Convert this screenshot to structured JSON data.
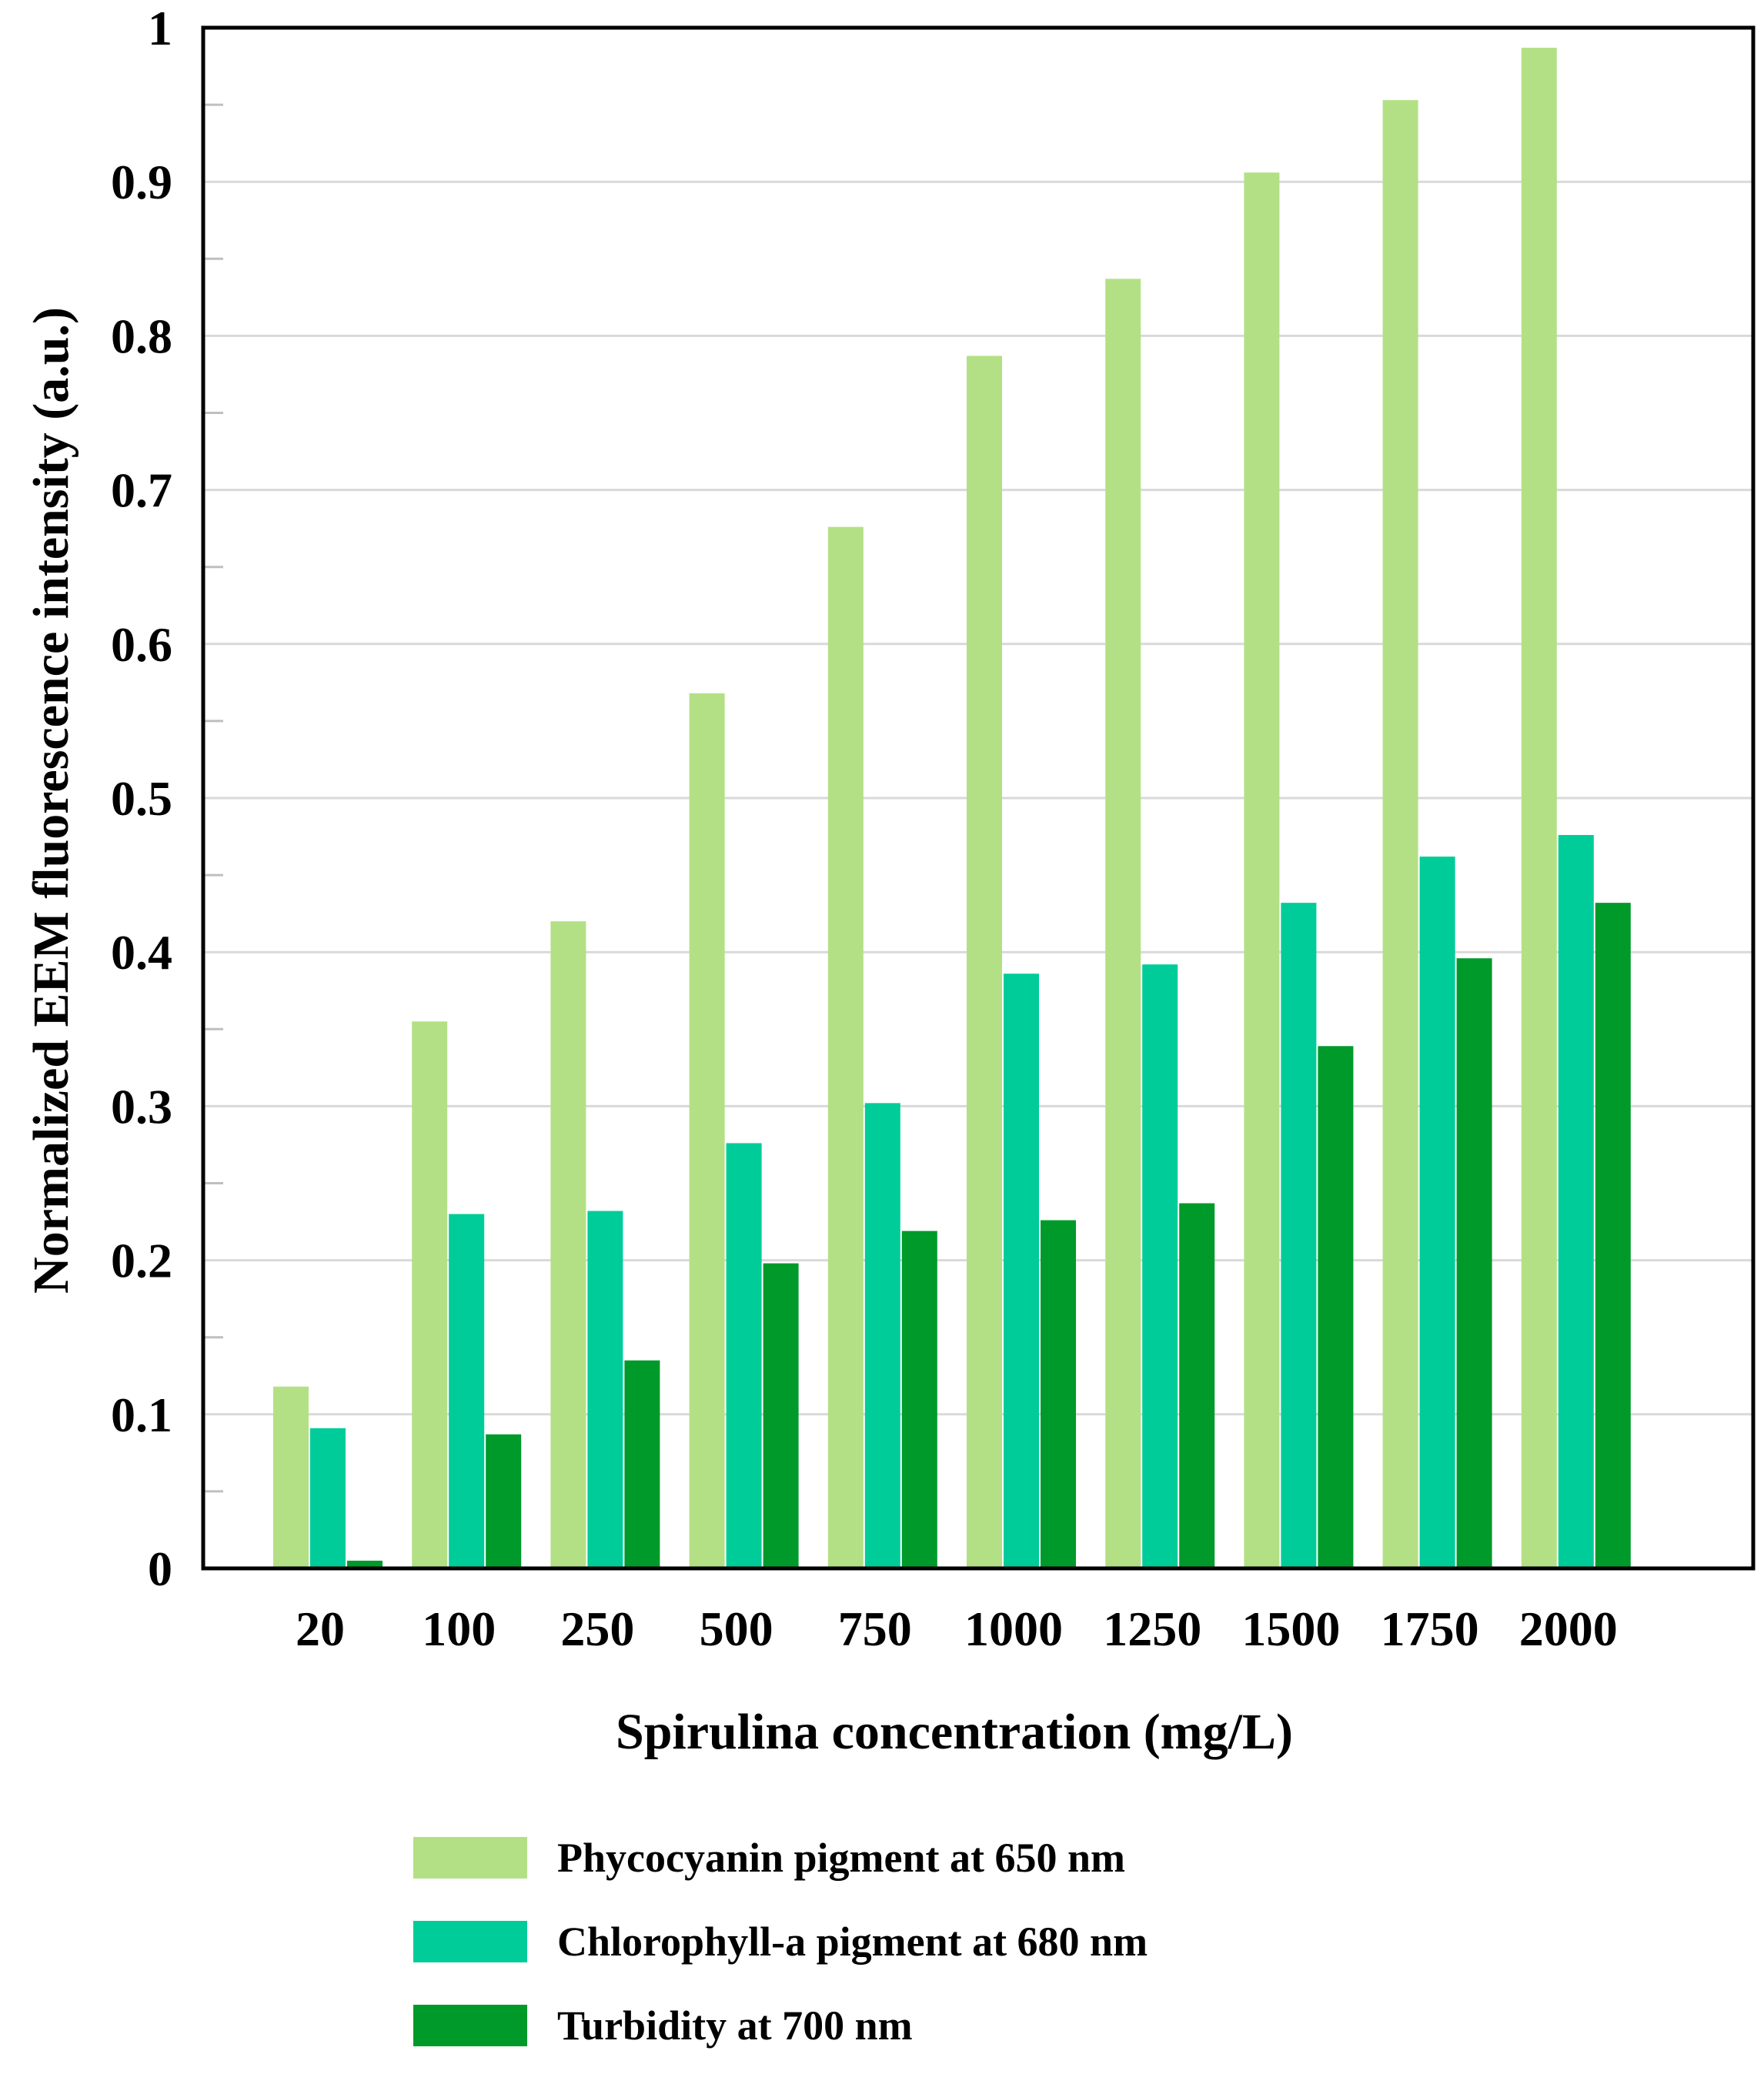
{
  "chart_data": {
    "type": "bar",
    "xlabel": "Spirulina concentration (mg/L)",
    "ylabel": "Normalized EEM fluorescence intensity (a.u.)",
    "ylim": [
      0,
      1
    ],
    "yticks": [
      "0",
      "0.1",
      "0.2",
      "0.3",
      "0.4",
      "0.5",
      "0.6",
      "0.7",
      "0.8",
      "0.9",
      "1"
    ],
    "categories": [
      "20",
      "100",
      "250",
      "500",
      "750",
      "1000",
      "1250",
      "1500",
      "1750",
      "2000"
    ],
    "grid": true,
    "legend_position": "bottom",
    "series": [
      {
        "name": "Phycocyanin pigment at 650 nm",
        "color": "#b4e085",
        "values": [
          0.118,
          0.355,
          0.42,
          0.568,
          0.676,
          0.787,
          0.837,
          0.906,
          0.953,
          0.987
        ]
      },
      {
        "name": "Chlorophyll-a pigment at 680 nm",
        "color": "#00cc99",
        "values": [
          0.091,
          0.23,
          0.232,
          0.276,
          0.302,
          0.386,
          0.392,
          0.432,
          0.462,
          0.476
        ]
      },
      {
        "name": "Turbidity at 700 nm",
        "color": "#009a2a",
        "values": [
          0.005,
          0.087,
          0.135,
          0.198,
          0.219,
          0.226,
          0.237,
          0.339,
          0.396,
          0.432
        ]
      }
    ]
  }
}
